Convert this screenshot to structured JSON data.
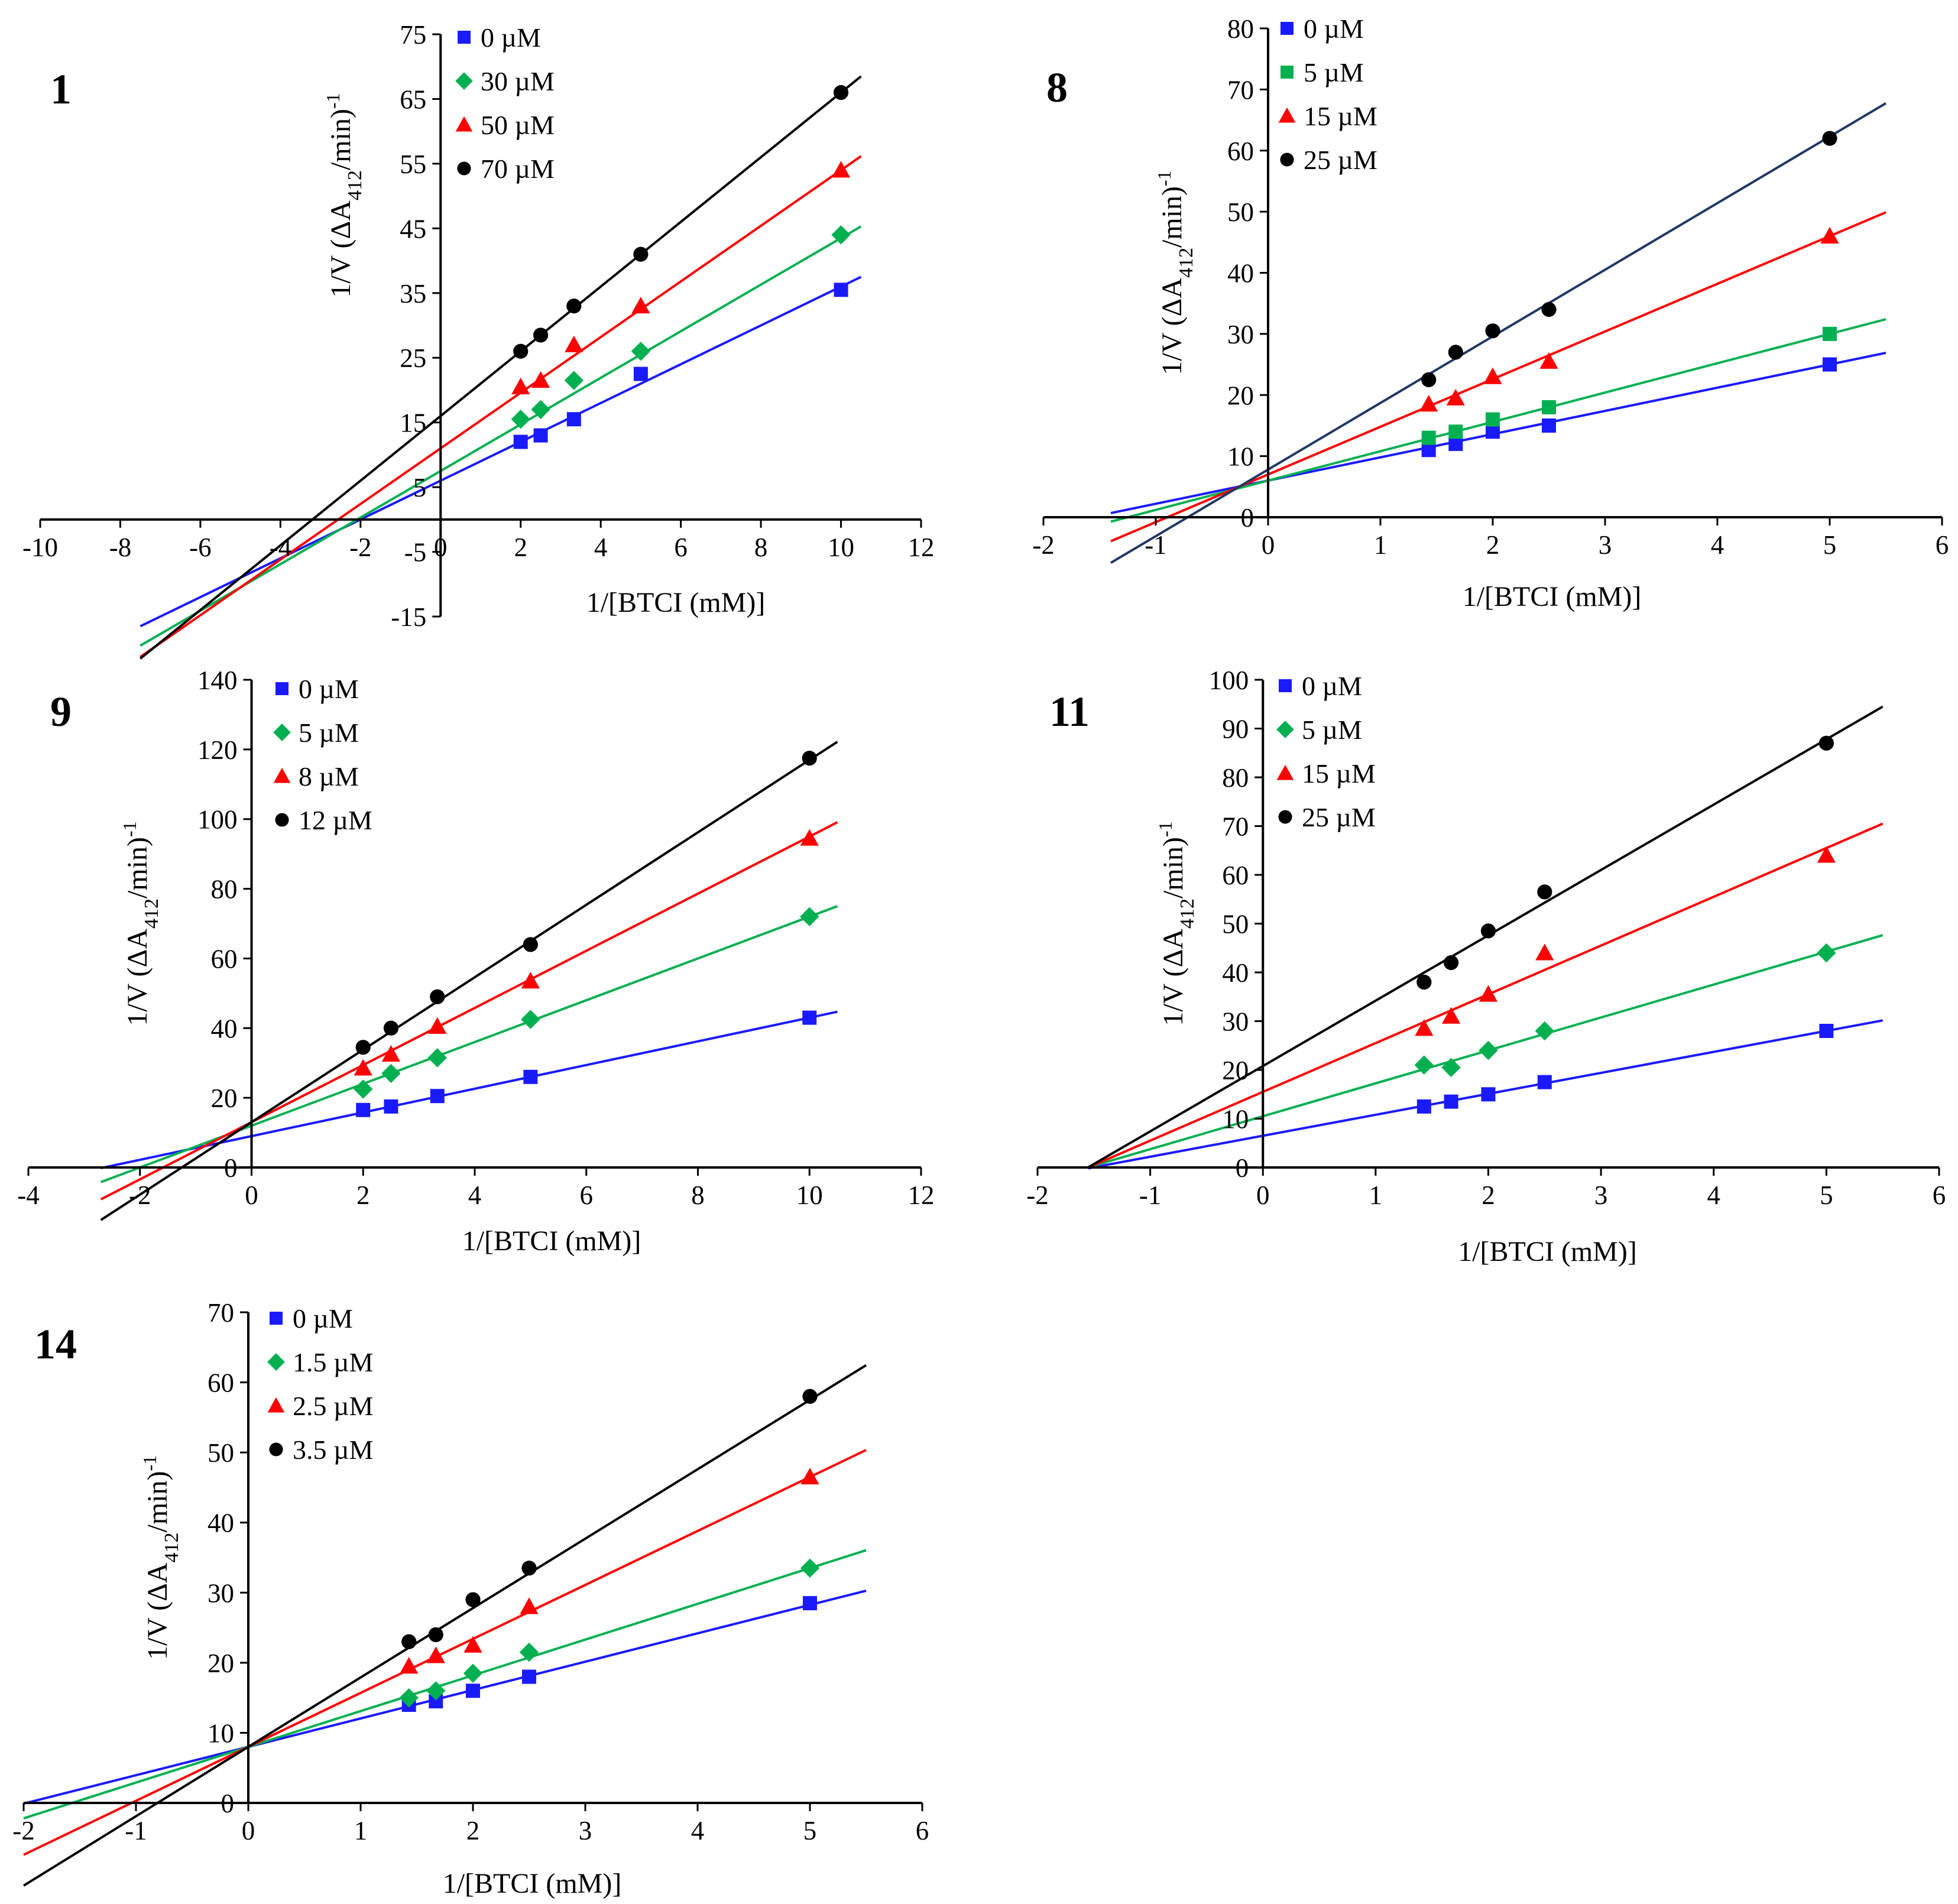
{
  "figure": {
    "description_free": true
  },
  "chart_data": [
    {
      "id": "1",
      "type": "scatter",
      "panel_label": "1",
      "xlabel": "1/[BTCI (mM)]",
      "ylabel_main": "1/V (ΔA",
      "ylabel_sub": "412",
      "ylabel_tail": "/min)",
      "ylabel_sup": "-1",
      "xlim": [
        -10,
        12
      ],
      "ylim": [
        -15,
        75
      ],
      "xticks": [
        -10,
        -8,
        -6,
        -4,
        -2,
        0,
        2,
        4,
        6,
        8,
        10,
        12
      ],
      "yticks": [
        -15,
        -5,
        5,
        15,
        25,
        35,
        45,
        55,
        65,
        75
      ],
      "x_line_range": [
        -7.5,
        10.5
      ],
      "series": [
        {
          "name": "0 µM",
          "marker": "square",
          "color": "#1a1aff",
          "x": [
            2,
            2.5,
            3.33,
            5,
            10
          ],
          "y": [
            12,
            13,
            15.5,
            22.5,
            35.5
          ],
          "line": {
            "slope": 3.0,
            "intercept": 6.0
          }
        },
        {
          "name": "30 µM",
          "marker": "diamond",
          "color": "#00b050",
          "x": [
            2,
            2.5,
            3.33,
            5,
            10
          ],
          "y": [
            15.5,
            17,
            21.5,
            26,
            44
          ],
          "line": {
            "slope": 3.6,
            "intercept": 7.5
          }
        },
        {
          "name": "50 µM",
          "marker": "triangle",
          "color": "#ff0000",
          "x": [
            2,
            2.5,
            3.33,
            5,
            10
          ],
          "y": [
            20.5,
            21.5,
            27,
            33,
            54
          ],
          "line": {
            "slope": 4.3,
            "intercept": 11.0
          }
        },
        {
          "name": "70 µM",
          "marker": "circle",
          "color": "#000000",
          "x": [
            2,
            2.5,
            3.33,
            5,
            10
          ],
          "y": [
            26,
            28.5,
            33,
            41,
            66
          ],
          "line": {
            "slope": 5.0,
            "intercept": 16.0
          }
        }
      ]
    },
    {
      "id": "8",
      "type": "scatter",
      "panel_label": "8",
      "xlabel": "1/[BTCI (mM)]",
      "ylabel_main": "1/V (ΔA",
      "ylabel_sub": "412",
      "ylabel_tail": "/min)",
      "ylabel_sup": "-1",
      "xlim": [
        -2,
        6
      ],
      "ylim": [
        0,
        80
      ],
      "xticks": [
        -2,
        -1,
        0,
        1,
        2,
        3,
        4,
        5,
        6
      ],
      "yticks": [
        0,
        10,
        20,
        30,
        40,
        50,
        60,
        70,
        80
      ],
      "x_line_range": [
        -1.4,
        5.5
      ],
      "series": [
        {
          "name": "0 µM",
          "marker": "square",
          "color": "#1a1aff",
          "x": [
            1.43,
            1.67,
            2,
            2.5,
            5
          ],
          "y": [
            11,
            12,
            14,
            15,
            25
          ],
          "line": {
            "slope": 3.8,
            "intercept": 6.0
          }
        },
        {
          "name": "5 µM",
          "marker": "square",
          "color": "#00b050",
          "x": [
            1.43,
            1.67,
            2,
            2.5,
            5
          ],
          "y": [
            13,
            14,
            16,
            18,
            30
          ],
          "line": {
            "slope": 4.8,
            "intercept": 6.0
          }
        },
        {
          "name": "15 µM",
          "marker": "triangle",
          "color": "#ff0000",
          "x": [
            1.43,
            1.67,
            2,
            2.5,
            5
          ],
          "y": [
            18.5,
            19.5,
            23,
            25.5,
            46
          ],
          "line": {
            "slope": 7.8,
            "intercept": 7.0
          }
        },
        {
          "name": "25 µM",
          "marker": "circle",
          "color": "#000000",
          "x": [
            1.43,
            1.67,
            2,
            2.5,
            5
          ],
          "y": [
            22.5,
            27,
            30.5,
            34,
            62
          ],
          "line": {
            "slope": 10.9,
            "intercept": 7.8
          }
        }
      ]
    },
    {
      "id": "9",
      "type": "scatter",
      "panel_label": "9",
      "xlabel": "1/[BTCI (mM)]",
      "ylabel_main": "1/V (ΔA",
      "ylabel_sub": "412",
      "ylabel_tail": "/min)",
      "ylabel_sup": "-1",
      "xlim": [
        -4,
        12
      ],
      "ylim": [
        0,
        140
      ],
      "xticks": [
        -4,
        -2,
        0,
        2,
        4,
        6,
        8,
        10,
        12
      ],
      "yticks": [
        0,
        20,
        40,
        60,
        80,
        100,
        120,
        140
      ],
      "x_line_range": [
        -2.7,
        10.5
      ],
      "series": [
        {
          "name": "0 µM",
          "marker": "square",
          "color": "#1a1aff",
          "x": [
            2,
            2.5,
            3.33,
            5,
            10
          ],
          "y": [
            16.5,
            17.5,
            20.5,
            26,
            43
          ],
          "line": {
            "slope": 3.4,
            "intercept": 9.0
          }
        },
        {
          "name": "5 µM",
          "marker": "diamond",
          "color": "#00b050",
          "x": [
            2,
            2.5,
            3.33,
            5,
            10
          ],
          "y": [
            22.5,
            27,
            31.5,
            42.5,
            72
          ],
          "line": {
            "slope": 6.0,
            "intercept": 12.0
          }
        },
        {
          "name": "8 µM",
          "marker": "triangle",
          "color": "#ff0000",
          "x": [
            2,
            2.5,
            3.33,
            5,
            10
          ],
          "y": [
            28.5,
            32.5,
            40.5,
            53.5,
            94.5
          ],
          "line": {
            "slope": 8.2,
            "intercept": 13.0
          }
        },
        {
          "name": "12 µM",
          "marker": "circle",
          "color": "#000000",
          "x": [
            2,
            2.5,
            3.33,
            5,
            10
          ],
          "y": [
            34.5,
            40,
            49,
            64,
            117.5
          ],
          "line": {
            "slope": 10.4,
            "intercept": 13.0
          }
        }
      ]
    },
    {
      "id": "11",
      "type": "scatter",
      "panel_label": "11",
      "xlabel": "1/[BTCI (mM)]",
      "ylabel_main": "1/V (ΔA",
      "ylabel_sub": "412",
      "ylabel_tail": "/min)",
      "ylabel_sup": "-1",
      "xlim": [
        -2,
        6
      ],
      "ylim": [
        0,
        100
      ],
      "xticks": [
        -2,
        -1,
        0,
        1,
        2,
        3,
        4,
        5,
        6
      ],
      "yticks": [
        0,
        10,
        20,
        30,
        40,
        50,
        60,
        70,
        80,
        90,
        100
      ],
      "x_line_range": [
        -1.55,
        5.5
      ],
      "series": [
        {
          "name": "0 µM",
          "marker": "square",
          "color": "#1a1aff",
          "x": [
            1.43,
            1.67,
            2,
            2.5,
            5
          ],
          "y": [
            12.5,
            13.5,
            15,
            17.5,
            28
          ],
          "line": {
            "slope": 4.3,
            "intercept": 6.5
          }
        },
        {
          "name": "5 µM",
          "marker": "diamond",
          "color": "#00b050",
          "x": [
            1.43,
            1.67,
            2,
            2.5,
            5
          ],
          "y": [
            21,
            20.5,
            24,
            28,
            44
          ],
          "line": {
            "slope": 6.75,
            "intercept": 10.5
          }
        },
        {
          "name": "15 µM",
          "marker": "triangle",
          "color": "#ff0000",
          "x": [
            1.43,
            1.67,
            2,
            2.5,
            5
          ],
          "y": [
            28.5,
            31,
            35.5,
            44,
            64
          ],
          "line": {
            "slope": 10.0,
            "intercept": 15.5
          }
        },
        {
          "name": "25 µM",
          "marker": "circle",
          "color": "#000000",
          "x": [
            1.43,
            1.67,
            2,
            2.5,
            5
          ],
          "y": [
            38,
            42,
            48.5,
            56.5,
            87
          ],
          "line": {
            "slope": 13.4,
            "intercept": 20.8
          }
        }
      ]
    },
    {
      "id": "14",
      "type": "scatter",
      "panel_label": "14",
      "xlabel": "1/[BTCI (mM)]",
      "ylabel_main": "1/V (ΔA",
      "ylabel_sub": "412",
      "ylabel_tail": "/min)",
      "ylabel_sup": "-1",
      "xlim": [
        -2,
        6
      ],
      "ylim": [
        0,
        70
      ],
      "xticks": [
        -2,
        -1,
        0,
        1,
        2,
        3,
        4,
        5,
        6
      ],
      "yticks": [
        0,
        10,
        20,
        30,
        40,
        50,
        60,
        70
      ],
      "x_line_range": [
        -2.0,
        5.5
      ],
      "series": [
        {
          "name": "0 µM",
          "marker": "square",
          "color": "#1a1aff",
          "x": [
            1.43,
            1.67,
            2,
            2.5,
            5
          ],
          "y": [
            14,
            14.5,
            16,
            18,
            28.5
          ],
          "line": {
            "slope": 4.05,
            "intercept": 8.0
          }
        },
        {
          "name": "1.5 µM",
          "marker": "diamond",
          "color": "#00b050",
          "x": [
            1.43,
            1.67,
            2,
            2.5,
            5
          ],
          "y": [
            15,
            16,
            18.5,
            21.5,
            33.5
          ],
          "line": {
            "slope": 5.1,
            "intercept": 8.0
          }
        },
        {
          "name": "2.5 µM",
          "marker": "triangle",
          "color": "#ff0000",
          "x": [
            1.43,
            1.67,
            2,
            2.5,
            5
          ],
          "y": [
            19.5,
            21,
            22.5,
            28,
            46.5
          ],
          "line": {
            "slope": 7.7,
            "intercept": 8.0
          }
        },
        {
          "name": "3.5 µM",
          "marker": "circle",
          "color": "#000000",
          "x": [
            1.43,
            1.67,
            2,
            2.5,
            5
          ],
          "y": [
            23,
            24,
            29,
            33.5,
            58
          ],
          "line": {
            "slope": 9.9,
            "intercept": 8.0
          }
        }
      ]
    }
  ]
}
